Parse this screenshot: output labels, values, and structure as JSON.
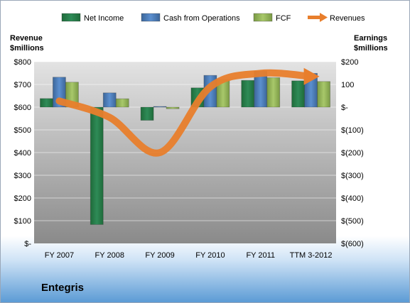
{
  "chart_data": {
    "type": "bar",
    "title": "",
    "company": "Entegris",
    "categories": [
      "FY 2007",
      "FY 2008",
      "FY 2009",
      "FY 2010",
      "FY 2011",
      "TTM 3-2012"
    ],
    "left_axis": {
      "label_line1": "Revenue",
      "label_line2": "$millions",
      "ylim": [
        0,
        800
      ],
      "ticks": [
        0,
        100,
        200,
        300,
        400,
        500,
        600,
        700,
        800
      ],
      "tick_labels": [
        "$-",
        "$100",
        "$200",
        "$300",
        "$400",
        "$500",
        "$600",
        "$700",
        "$800"
      ]
    },
    "right_axis": {
      "label_line1": "Earnings",
      "label_line2": "$millions",
      "ylim": [
        -600,
        200
      ],
      "ticks": [
        -600,
        -500,
        -400,
        -300,
        -200,
        -100,
        0,
        100,
        200
      ],
      "tick_labels": [
        "$(600)",
        "$(500)",
        "$(400)",
        "$(300)",
        "$(200)",
        "$(100)",
        "$-",
        "100",
        "$200"
      ]
    },
    "series": [
      {
        "name": "Net Income",
        "axis": "right",
        "kind": "bar",
        "color": "#2e8b57",
        "values": [
          38,
          -517,
          -58,
          85,
          118,
          116
        ]
      },
      {
        "name": "Cash from Operations",
        "axis": "right",
        "kind": "bar",
        "color": "#4f81bd",
        "values": [
          132,
          63,
          3,
          140,
          158,
          149
        ]
      },
      {
        "name": "FCF",
        "axis": "right",
        "kind": "bar",
        "color": "#9bbb59",
        "values": [
          110,
          37,
          -7,
          122,
          130,
          113
        ]
      },
      {
        "name": "Revenues",
        "axis": "left",
        "kind": "line",
        "color": "#e87e2c",
        "values": [
          627,
          555,
          400,
          689,
          749,
          735
        ]
      }
    ],
    "grid": true,
    "legend_position": "top"
  }
}
